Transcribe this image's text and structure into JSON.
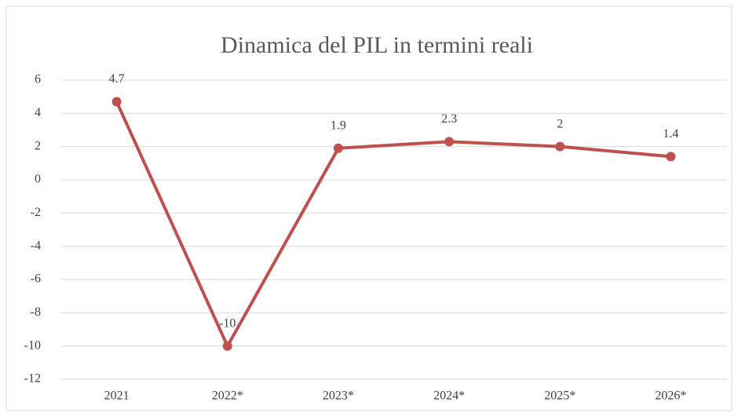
{
  "chart_data": {
    "type": "line",
    "title": "Dinamica del PIL in termini reali",
    "categories": [
      "2021",
      "2022*",
      "2023*",
      "2024*",
      "2025*",
      "2026*"
    ],
    "series": [
      {
        "name": "PIL",
        "color": "#c0504d",
        "values": [
          4.7,
          -10,
          1.9,
          2.3,
          2,
          1.4
        ]
      }
    ],
    "ylim": [
      -12,
      6
    ],
    "yticks": [
      -12,
      -10,
      -8,
      -6,
      -4,
      -2,
      0,
      2,
      4,
      6
    ],
    "grid": true
  }
}
